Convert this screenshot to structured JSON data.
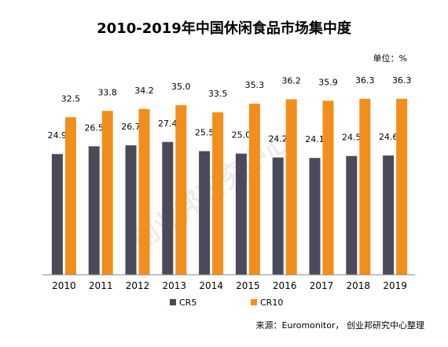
{
  "title": "2010-2019年中国休闲食品市场集中度",
  "unit_label": "单位：%",
  "source": "来源：Euromonitor， 创业邦研究中心整理",
  "watermark": "创业邦研究中心",
  "colors": {
    "CR5": "#4a4a5a",
    "CR10": "#f28e1c",
    "axis": "#888888"
  },
  "chart_data": {
    "type": "bar",
    "categories": [
      "2010",
      "2011",
      "2012",
      "2013",
      "2014",
      "2015",
      "2016",
      "2017",
      "2018",
      "2019"
    ],
    "series": [
      {
        "name": "CR5",
        "values": [
          24.9,
          26.5,
          26.7,
          27.4,
          25.5,
          25.0,
          24.2,
          24.1,
          24.5,
          24.6
        ]
      },
      {
        "name": "CR10",
        "values": [
          32.5,
          33.8,
          34.2,
          35.0,
          33.5,
          35.3,
          36.2,
          35.9,
          36.3,
          36.3
        ]
      }
    ],
    "ylim": [
      0,
      40
    ],
    "grid": false,
    "legend": "bottom-center"
  }
}
